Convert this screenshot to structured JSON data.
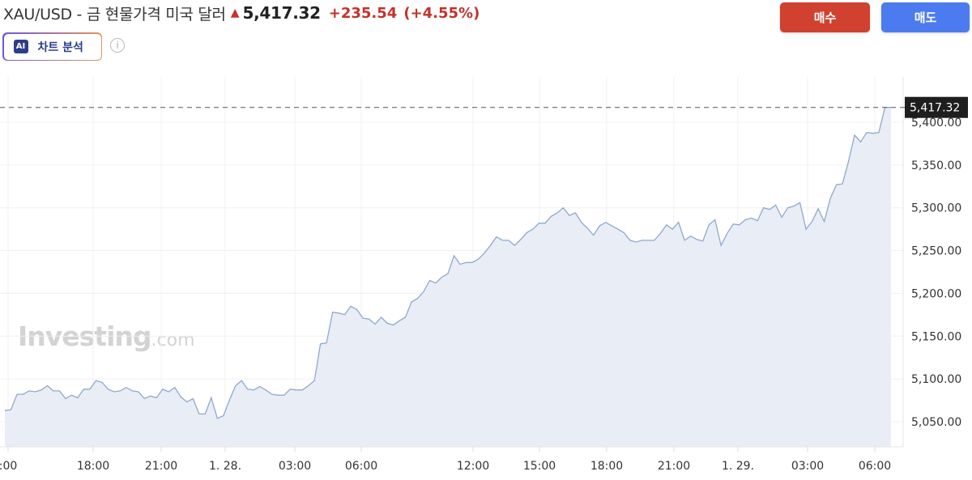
{
  "header": {
    "title": "XAU/USD - 금 현물가격 미국 달러",
    "direction_icon": "arrow-up-icon",
    "price": "5,417.32",
    "change": "+235.54",
    "change_pct": "(+4.55%)",
    "buy_label": "매수",
    "sell_label": "매도",
    "ai_badge": "AI",
    "ai_label": "차트 분석",
    "info_glyph": "i"
  },
  "colors": {
    "buy": "#d0412f",
    "sell": "#4b7bee",
    "up": "#c4322a",
    "line": "#8fa9cf",
    "fill": "#e9edf5"
  },
  "watermark": {
    "brand": "Investing",
    "suffix": ".com"
  },
  "chart_data": {
    "type": "area",
    "ylim": [
      5030,
      5440
    ],
    "y_ticks": [
      "5,050.00",
      "5,100.00",
      "5,150.00",
      "5,200.00",
      "5,250.00",
      "5,300.00",
      "5,350.00",
      "5,400.00"
    ],
    "y_tick_values": [
      5050,
      5100,
      5150,
      5200,
      5250,
      5300,
      5350,
      5400
    ],
    "x_ticks": [
      ":00",
      "18:00",
      "21:00",
      "1. 28.",
      "03:00",
      "06:00",
      "12:00",
      "15:00",
      "18:00",
      "21:00",
      "1. 29.",
      "03:00",
      "06:00"
    ],
    "last_price_label": "5,417.32",
    "last_price": 5417.32,
    "grid": true,
    "values": [
      5063,
      5064,
      5082,
      5082,
      5086,
      5085,
      5087,
      5092,
      5086,
      5086,
      5077,
      5081,
      5078,
      5088,
      5088,
      5098,
      5096,
      5088,
      5085,
      5086,
      5090,
      5086,
      5085,
      5077,
      5080,
      5078,
      5088,
      5085,
      5090,
      5079,
      5073,
      5077,
      5059,
      5059,
      5078,
      5054,
      5057,
      5075,
      5092,
      5098,
      5088,
      5087,
      5091,
      5087,
      5082,
      5081,
      5081,
      5088,
      5087,
      5087,
      5092,
      5098,
      5141,
      5142,
      5178,
      5177,
      5175,
      5185,
      5181,
      5171,
      5170,
      5164,
      5172,
      5165,
      5163,
      5168,
      5172,
      5190,
      5194,
      5202,
      5215,
      5212,
      5219,
      5223,
      5244,
      5234,
      5236,
      5236,
      5240,
      5247,
      5256,
      5266,
      5262,
      5262,
      5256,
      5263,
      5271,
      5275,
      5282,
      5282,
      5290,
      5294,
      5300,
      5291,
      5294,
      5283,
      5276,
      5268,
      5279,
      5283,
      5279,
      5275,
      5271,
      5262,
      5260,
      5262,
      5262,
      5262,
      5270,
      5280,
      5275,
      5283,
      5262,
      5267,
      5263,
      5261,
      5280,
      5286,
      5256,
      5270,
      5281,
      5280,
      5286,
      5288,
      5285,
      5300,
      5298,
      5303,
      5289,
      5300,
      5302,
      5306,
      5275,
      5284,
      5299,
      5284,
      5311,
      5327,
      5328,
      5354,
      5385,
      5377,
      5388,
      5387,
      5388,
      5417.32,
      5417.32
    ]
  }
}
